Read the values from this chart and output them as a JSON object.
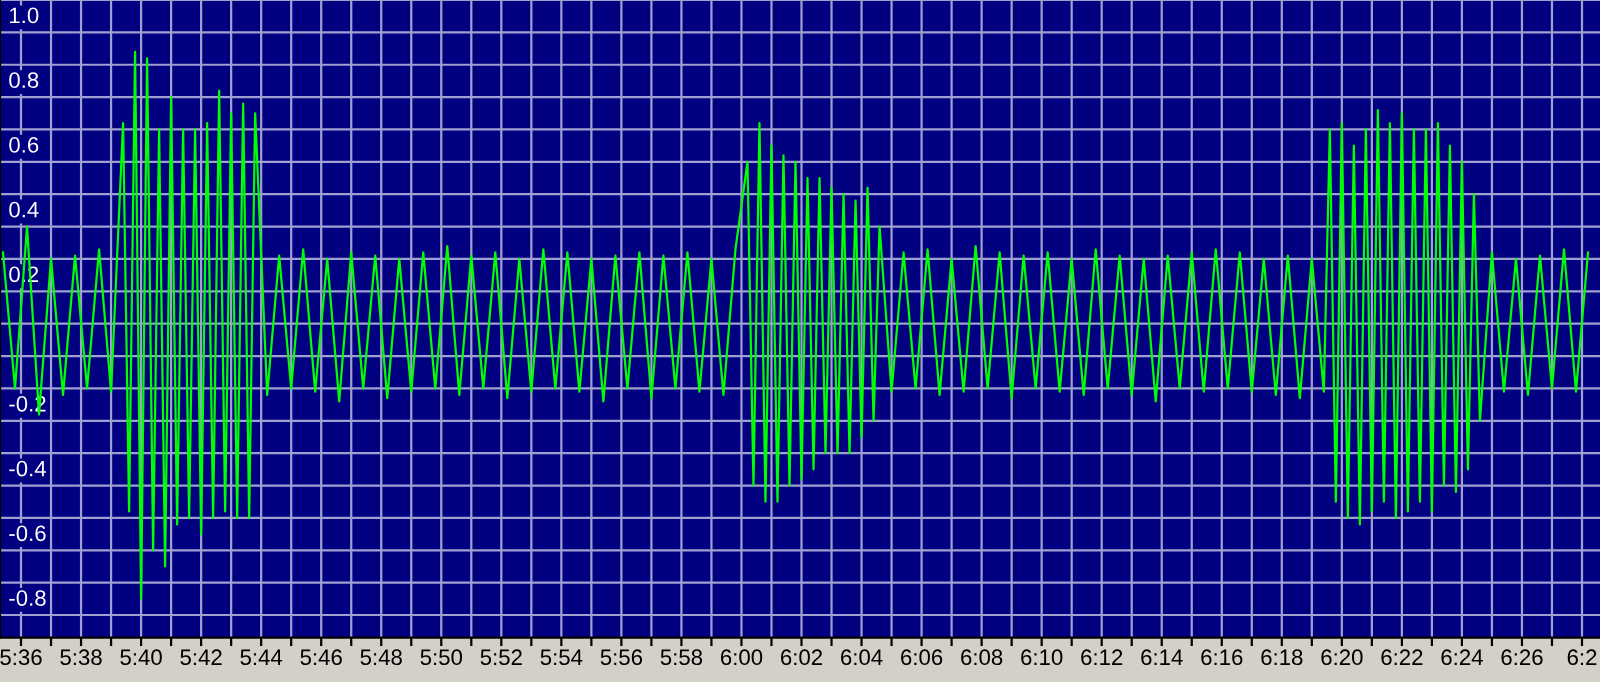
{
  "chart_data": {
    "type": "line",
    "xlim": [
      335.3,
      388.6
    ],
    "ylim": [
      -0.97,
      1.0
    ],
    "xticks": [
      {
        "value": 336,
        "label": "5:36"
      },
      {
        "value": 337,
        "label": null
      },
      {
        "value": 338,
        "label": "5:38"
      },
      {
        "value": 339,
        "label": null
      },
      {
        "value": 340,
        "label": "5:40"
      },
      {
        "value": 341,
        "label": null
      },
      {
        "value": 342,
        "label": "5:42"
      },
      {
        "value": 343,
        "label": null
      },
      {
        "value": 344,
        "label": "5:44"
      },
      {
        "value": 345,
        "label": null
      },
      {
        "value": 346,
        "label": "5:46"
      },
      {
        "value": 347,
        "label": null
      },
      {
        "value": 348,
        "label": "5:48"
      },
      {
        "value": 349,
        "label": null
      },
      {
        "value": 350,
        "label": "5:50"
      },
      {
        "value": 351,
        "label": null
      },
      {
        "value": 352,
        "label": "5:52"
      },
      {
        "value": 353,
        "label": null
      },
      {
        "value": 354,
        "label": "5:54"
      },
      {
        "value": 355,
        "label": null
      },
      {
        "value": 356,
        "label": "5:56"
      },
      {
        "value": 357,
        "label": null
      },
      {
        "value": 358,
        "label": "5:58"
      },
      {
        "value": 359,
        "label": null
      },
      {
        "value": 360,
        "label": "6:00"
      },
      {
        "value": 361,
        "label": null
      },
      {
        "value": 362,
        "label": "6:02"
      },
      {
        "value": 363,
        "label": null
      },
      {
        "value": 364,
        "label": "6:04"
      },
      {
        "value": 365,
        "label": null
      },
      {
        "value": 366,
        "label": "6:06"
      },
      {
        "value": 367,
        "label": null
      },
      {
        "value": 368,
        "label": "6:08"
      },
      {
        "value": 369,
        "label": null
      },
      {
        "value": 370,
        "label": "6:10"
      },
      {
        "value": 371,
        "label": null
      },
      {
        "value": 372,
        "label": "6:12"
      },
      {
        "value": 373,
        "label": null
      },
      {
        "value": 374,
        "label": "6:14"
      },
      {
        "value": 375,
        "label": null
      },
      {
        "value": 376,
        "label": "6:16"
      },
      {
        "value": 377,
        "label": null
      },
      {
        "value": 378,
        "label": "6:18"
      },
      {
        "value": 379,
        "label": null
      },
      {
        "value": 380,
        "label": "6:20"
      },
      {
        "value": 381,
        "label": null
      },
      {
        "value": 382,
        "label": "6:22"
      },
      {
        "value": 383,
        "label": null
      },
      {
        "value": 384,
        "label": "6:24"
      },
      {
        "value": 385,
        "label": null
      },
      {
        "value": 386,
        "label": "6:26"
      },
      {
        "value": 387,
        "label": null
      },
      {
        "value": 388,
        "label": "6:2"
      }
    ],
    "yticks": [
      {
        "value": 1.0,
        "label": "1.0"
      },
      {
        "value": 0.9,
        "label": null
      },
      {
        "value": 0.8,
        "label": "0.8"
      },
      {
        "value": 0.7,
        "label": null
      },
      {
        "value": 0.6,
        "label": "0.6"
      },
      {
        "value": 0.5,
        "label": null
      },
      {
        "value": 0.4,
        "label": "0.4"
      },
      {
        "value": 0.3,
        "label": null
      },
      {
        "value": 0.2,
        "label": "0.2"
      },
      {
        "value": 0.1,
        "label": null
      },
      {
        "value": 0,
        "label": null
      },
      {
        "value": -0.1,
        "label": null
      },
      {
        "value": -0.2,
        "label": "-0.2"
      },
      {
        "value": -0.3,
        "label": null
      },
      {
        "value": -0.4,
        "label": "-0.4"
      },
      {
        "value": -0.5,
        "label": null
      },
      {
        "value": -0.6,
        "label": "-0.6"
      },
      {
        "value": -0.7,
        "label": null
      },
      {
        "value": -0.8,
        "label": "-0.8"
      },
      {
        "value": -0.9,
        "label": null
      }
    ],
    "grid": true,
    "line_style": "solid",
    "series": [
      {
        "color": "#00ff00",
        "x": [
          335.4,
          335.8,
          336.2,
          336.6,
          337.0,
          337.4,
          337.8,
          338.2,
          338.6,
          339.0,
          339.4,
          339.6,
          339.8,
          340.0,
          340.2,
          340.4,
          340.6,
          340.8,
          341.0,
          341.2,
          341.4,
          341.6,
          341.8,
          342.0,
          342.2,
          342.4,
          342.6,
          342.8,
          343.0,
          343.2,
          343.4,
          343.6,
          343.8,
          344.2,
          344.6,
          345.0,
          345.4,
          345.8,
          346.2,
          346.6,
          347.0,
          347.4,
          347.8,
          348.2,
          348.6,
          349.0,
          349.4,
          349.8,
          350.2,
          350.6,
          351.0,
          351.4,
          351.8,
          352.2,
          352.6,
          353.0,
          353.4,
          353.8,
          354.2,
          354.6,
          355.0,
          355.4,
          355.8,
          356.2,
          356.6,
          357.0,
          357.4,
          357.8,
          358.2,
          358.6,
          359.0,
          359.4,
          359.8,
          360.2,
          360.4,
          360.6,
          360.8,
          361.0,
          361.2,
          361.4,
          361.6,
          361.8,
          362.0,
          362.2,
          362.4,
          362.6,
          362.8,
          363.0,
          363.2,
          363.4,
          363.6,
          363.8,
          364.0,
          364.2,
          364.4,
          364.6,
          365.0,
          365.4,
          365.8,
          366.2,
          366.6,
          367.0,
          367.4,
          367.8,
          368.2,
          368.6,
          369.0,
          369.4,
          369.8,
          370.2,
          370.6,
          371.0,
          371.4,
          371.8,
          372.2,
          372.6,
          373.0,
          373.4,
          373.8,
          374.2,
          374.6,
          375.0,
          375.4,
          375.8,
          376.2,
          376.6,
          377.0,
          377.4,
          377.8,
          378.2,
          378.6,
          379.0,
          379.4,
          379.6,
          379.8,
          380.0,
          380.2,
          380.4,
          380.6,
          380.8,
          381.0,
          381.2,
          381.4,
          381.6,
          381.8,
          382.0,
          382.2,
          382.4,
          382.6,
          382.8,
          383.0,
          383.2,
          383.4,
          383.6,
          383.8,
          384.0,
          384.2,
          384.4,
          384.6,
          385.0,
          385.4,
          385.8,
          386.2,
          386.6,
          387.0,
          387.4,
          387.8,
          388.2
        ],
        "values": [
          0.22,
          -0.2,
          0.3,
          -0.28,
          0.2,
          -0.22,
          0.21,
          -0.2,
          0.23,
          -0.21,
          0.62,
          -0.58,
          0.84,
          -0.85,
          0.82,
          -0.7,
          0.6,
          -0.75,
          0.7,
          -0.62,
          0.6,
          -0.6,
          0.6,
          -0.65,
          0.62,
          -0.6,
          0.72,
          -0.58,
          0.65,
          -0.6,
          0.68,
          -0.6,
          0.65,
          -0.22,
          0.21,
          -0.2,
          0.23,
          -0.21,
          0.2,
          -0.24,
          0.22,
          -0.2,
          0.21,
          -0.23,
          0.2,
          -0.21,
          0.22,
          -0.2,
          0.24,
          -0.22,
          0.21,
          -0.2,
          0.22,
          -0.23,
          0.2,
          -0.21,
          0.23,
          -0.2,
          0.22,
          -0.21,
          0.2,
          -0.24,
          0.21,
          -0.2,
          0.22,
          -0.23,
          0.21,
          -0.2,
          0.22,
          -0.21,
          0.2,
          -0.22,
          0.23,
          0.5,
          -0.5,
          0.62,
          -0.55,
          0.55,
          -0.55,
          0.52,
          -0.5,
          0.5,
          -0.48,
          0.45,
          -0.45,
          0.45,
          -0.4,
          0.42,
          -0.4,
          0.4,
          -0.4,
          0.38,
          -0.35,
          0.42,
          -0.3,
          0.3,
          -0.21,
          0.22,
          -0.2,
          0.23,
          -0.22,
          0.2,
          -0.21,
          0.24,
          -0.2,
          0.22,
          -0.23,
          0.21,
          -0.2,
          0.22,
          -0.21,
          0.2,
          -0.22,
          0.23,
          -0.2,
          0.21,
          -0.22,
          0.2,
          -0.24,
          0.21,
          -0.2,
          0.22,
          -0.21,
          0.23,
          -0.2,
          0.22,
          -0.21,
          0.2,
          -0.22,
          0.21,
          -0.23,
          0.2,
          -0.21,
          0.6,
          -0.55,
          0.62,
          -0.6,
          0.55,
          -0.62,
          0.6,
          -0.58,
          0.66,
          -0.55,
          0.62,
          -0.6,
          0.65,
          -0.58,
          0.6,
          -0.55,
          0.6,
          -0.58,
          0.62,
          -0.5,
          0.55,
          -0.52,
          0.5,
          -0.45,
          0.4,
          -0.3,
          0.22,
          -0.21,
          0.2,
          -0.22,
          0.21,
          -0.2,
          0.23,
          -0.21,
          0.22
        ]
      }
    ]
  }
}
